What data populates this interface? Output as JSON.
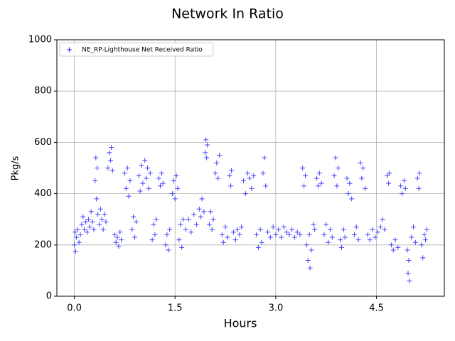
{
  "chart_data": {
    "type": "scatter",
    "title": "Network In Ratio",
    "x_label": "Hours",
    "y_label": "Pkg/s",
    "xlim": [
      -0.26,
      5.51
    ],
    "ylim": [
      0,
      1000
    ],
    "xticks": [
      {
        "value": 0,
        "label": "0.0"
      },
      1.5,
      {
        "value": 3,
        "label": "3.0"
      },
      4.5
    ],
    "yticks": [
      0,
      200,
      400,
      600,
      800,
      1000
    ],
    "grid": true,
    "legend": "upper left",
    "series": [
      {
        "name": "NE_RP-Lighthouse Net Received Ratio",
        "color": "#2222ff",
        "marker": "+",
        "x": [
          0.0,
          0.01,
          0.02,
          0.03,
          0.05,
          0.07,
          0.09,
          0.11,
          0.13,
          0.15,
          0.17,
          0.19,
          0.21,
          0.23,
          0.25,
          0.27,
          0.29,
          0.31,
          0.32,
          0.33,
          0.34,
          0.35,
          0.37,
          0.39,
          0.41,
          0.43,
          0.45,
          0.47,
          0.5,
          0.52,
          0.54,
          0.55,
          0.57,
          0.6,
          0.62,
          0.64,
          0.66,
          0.68,
          0.7,
          0.75,
          0.77,
          0.79,
          0.81,
          0.83,
          0.86,
          0.88,
          0.9,
          0.92,
          0.96,
          0.98,
          1.0,
          1.02,
          1.05,
          1.07,
          1.09,
          1.11,
          1.13,
          1.16,
          1.18,
          1.2,
          1.22,
          1.26,
          1.28,
          1.3,
          1.32,
          1.36,
          1.38,
          1.4,
          1.42,
          1.46,
          1.48,
          1.5,
          1.52,
          1.54,
          1.56,
          1.58,
          1.6,
          1.62,
          1.66,
          1.7,
          1.74,
          1.78,
          1.82,
          1.86,
          1.88,
          1.9,
          1.93,
          1.95,
          1.96,
          1.97,
          1.98,
          2.01,
          2.03,
          2.05,
          2.07,
          2.1,
          2.12,
          2.14,
          2.16,
          2.2,
          2.22,
          2.25,
          2.28,
          2.31,
          2.33,
          2.34,
          2.37,
          2.4,
          2.43,
          2.46,
          2.49,
          2.52,
          2.55,
          2.58,
          2.61,
          2.64,
          2.67,
          2.71,
          2.74,
          2.77,
          2.79,
          2.81,
          2.83,
          2.85,
          2.88,
          2.92,
          2.96,
          3.0,
          3.04,
          3.08,
          3.12,
          3.16,
          3.2,
          3.24,
          3.28,
          3.32,
          3.36,
          3.4,
          3.42,
          3.44,
          3.46,
          3.48,
          3.5,
          3.51,
          3.53,
          3.56,
          3.58,
          3.61,
          3.63,
          3.65,
          3.68,
          3.72,
          3.75,
          3.78,
          3.81,
          3.84,
          3.87,
          3.89,
          3.91,
          3.93,
          3.96,
          3.98,
          4.01,
          4.03,
          4.06,
          4.08,
          4.1,
          4.13,
          4.17,
          4.2,
          4.23,
          4.26,
          4.28,
          4.3,
          4.33,
          4.37,
          4.4,
          4.44,
          4.48,
          4.52,
          4.56,
          4.59,
          4.62,
          4.66,
          4.68,
          4.69,
          4.72,
          4.75,
          4.78,
          4.82,
          4.86,
          4.88,
          4.91,
          4.93,
          4.96,
          4.97,
          4.98,
          4.99,
          5.02,
          5.05,
          5.08,
          5.11,
          5.13,
          5.14,
          5.17,
          5.19,
          5.21,
          5.23,
          5.25
        ],
        "values": [
          200,
          250,
          175,
          230,
          260,
          210,
          240,
          280,
          310,
          260,
          290,
          250,
          300,
          270,
          330,
          290,
          260,
          450,
          540,
          380,
          500,
          320,
          280,
          340,
          300,
          260,
          320,
          290,
          500,
          560,
          530,
          580,
          490,
          240,
          210,
          230,
          195,
          250,
          220,
          480,
          420,
          500,
          390,
          450,
          260,
          310,
          230,
          290,
          470,
          410,
          510,
          440,
          530,
          460,
          500,
          420,
          480,
          220,
          280,
          240,
          300,
          460,
          430,
          480,
          440,
          200,
          240,
          180,
          260,
          400,
          450,
          380,
          470,
          420,
          220,
          280,
          190,
          300,
          260,
          300,
          250,
          320,
          280,
          340,
          310,
          380,
          330,
          560,
          610,
          540,
          590,
          280,
          330,
          260,
          300,
          480,
          520,
          460,
          550,
          240,
          210,
          270,
          230,
          470,
          430,
          490,
          250,
          220,
          260,
          240,
          270,
          450,
          400,
          480,
          460,
          420,
          470,
          240,
          190,
          260,
          210,
          480,
          540,
          430,
          250,
          230,
          270,
          240,
          260,
          230,
          270,
          250,
          240,
          260,
          230,
          250,
          240,
          500,
          430,
          470,
          200,
          140,
          240,
          110,
          180,
          280,
          260,
          460,
          430,
          480,
          440,
          240,
          280,
          210,
          260,
          230,
          470,
          540,
          430,
          500,
          220,
          190,
          260,
          230,
          460,
          400,
          440,
          380,
          240,
          270,
          220,
          520,
          460,
          500,
          420,
          240,
          220,
          260,
          230,
          250,
          270,
          300,
          260,
          470,
          440,
          480,
          200,
          180,
          220,
          190,
          430,
          400,
          450,
          420,
          180,
          90,
          140,
          60,
          230,
          270,
          210,
          460,
          420,
          480,
          200,
          150,
          240,
          220,
          260
        ]
      }
    ]
  }
}
